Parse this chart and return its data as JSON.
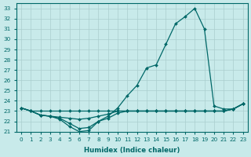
{
  "title": "",
  "xlabel": "Humidex (Indice chaleur)",
  "ylabel": "",
  "bg_color": "#c8eaea",
  "grid_color": "#aacece",
  "line_color": "#006868",
  "ylim": [
    21,
    33.5
  ],
  "xlim": [
    -0.5,
    23.5
  ],
  "yticks": [
    21,
    22,
    23,
    24,
    25,
    26,
    27,
    28,
    29,
    30,
    31,
    32,
    33
  ],
  "xticks": [
    0,
    1,
    2,
    3,
    4,
    5,
    6,
    7,
    8,
    9,
    10,
    11,
    12,
    13,
    14,
    15,
    16,
    17,
    18,
    19,
    20,
    21,
    22,
    23
  ],
  "series": [
    {
      "x": [
        0,
        1,
        2,
        3,
        4,
        5,
        6,
        7,
        8,
        9,
        10,
        11,
        12,
        13,
        14,
        15,
        16,
        17,
        18,
        19,
        20,
        21,
        22,
        23
      ],
      "y": [
        23.3,
        23.0,
        23.0,
        23.0,
        23.0,
        23.0,
        23.0,
        23.0,
        23.0,
        23.0,
        23.0,
        23.0,
        23.0,
        23.0,
        23.0,
        23.0,
        23.0,
        23.0,
        23.0,
        23.0,
        23.0,
        23.0,
        23.2,
        23.7
      ]
    },
    {
      "x": [
        0,
        1,
        2,
        3,
        4,
        5,
        6,
        7,
        8,
        9,
        10,
        11,
        12,
        13,
        14,
        15,
        16,
        17,
        18,
        19,
        20,
        21,
        22,
        23
      ],
      "y": [
        23.3,
        23.0,
        22.6,
        22.5,
        22.4,
        22.3,
        22.2,
        22.3,
        22.5,
        22.7,
        23.0,
        23.0,
        23.0,
        23.0,
        23.0,
        23.0,
        23.0,
        23.0,
        23.0,
        23.0,
        23.0,
        23.0,
        23.2,
        23.7
      ]
    },
    {
      "x": [
        0,
        1,
        2,
        3,
        4,
        5,
        6,
        7,
        8,
        9,
        10,
        11,
        12,
        13,
        14,
        15,
        16,
        17,
        18,
        19,
        20,
        21,
        22,
        23
      ],
      "y": [
        23.3,
        23.0,
        22.6,
        22.5,
        22.2,
        21.5,
        21.0,
        21.1,
        22.0,
        22.3,
        22.8,
        23.0,
        23.0,
        23.0,
        23.0,
        23.0,
        23.0,
        23.0,
        23.0,
        23.0,
        23.0,
        23.0,
        23.2,
        23.7
      ]
    },
    {
      "x": [
        0,
        1,
        2,
        3,
        4,
        5,
        6,
        7,
        8,
        9,
        10,
        11,
        12,
        13,
        14,
        15,
        16,
        17,
        18,
        19,
        20,
        21,
        22,
        23
      ],
      "y": [
        23.3,
        23.0,
        22.6,
        22.5,
        22.3,
        21.8,
        21.3,
        21.4,
        22.0,
        22.5,
        23.3,
        24.5,
        25.5,
        27.2,
        27.5,
        29.5,
        31.5,
        32.2,
        33.0,
        31.0,
        23.5,
        23.2,
        23.2,
        23.7
      ]
    }
  ]
}
